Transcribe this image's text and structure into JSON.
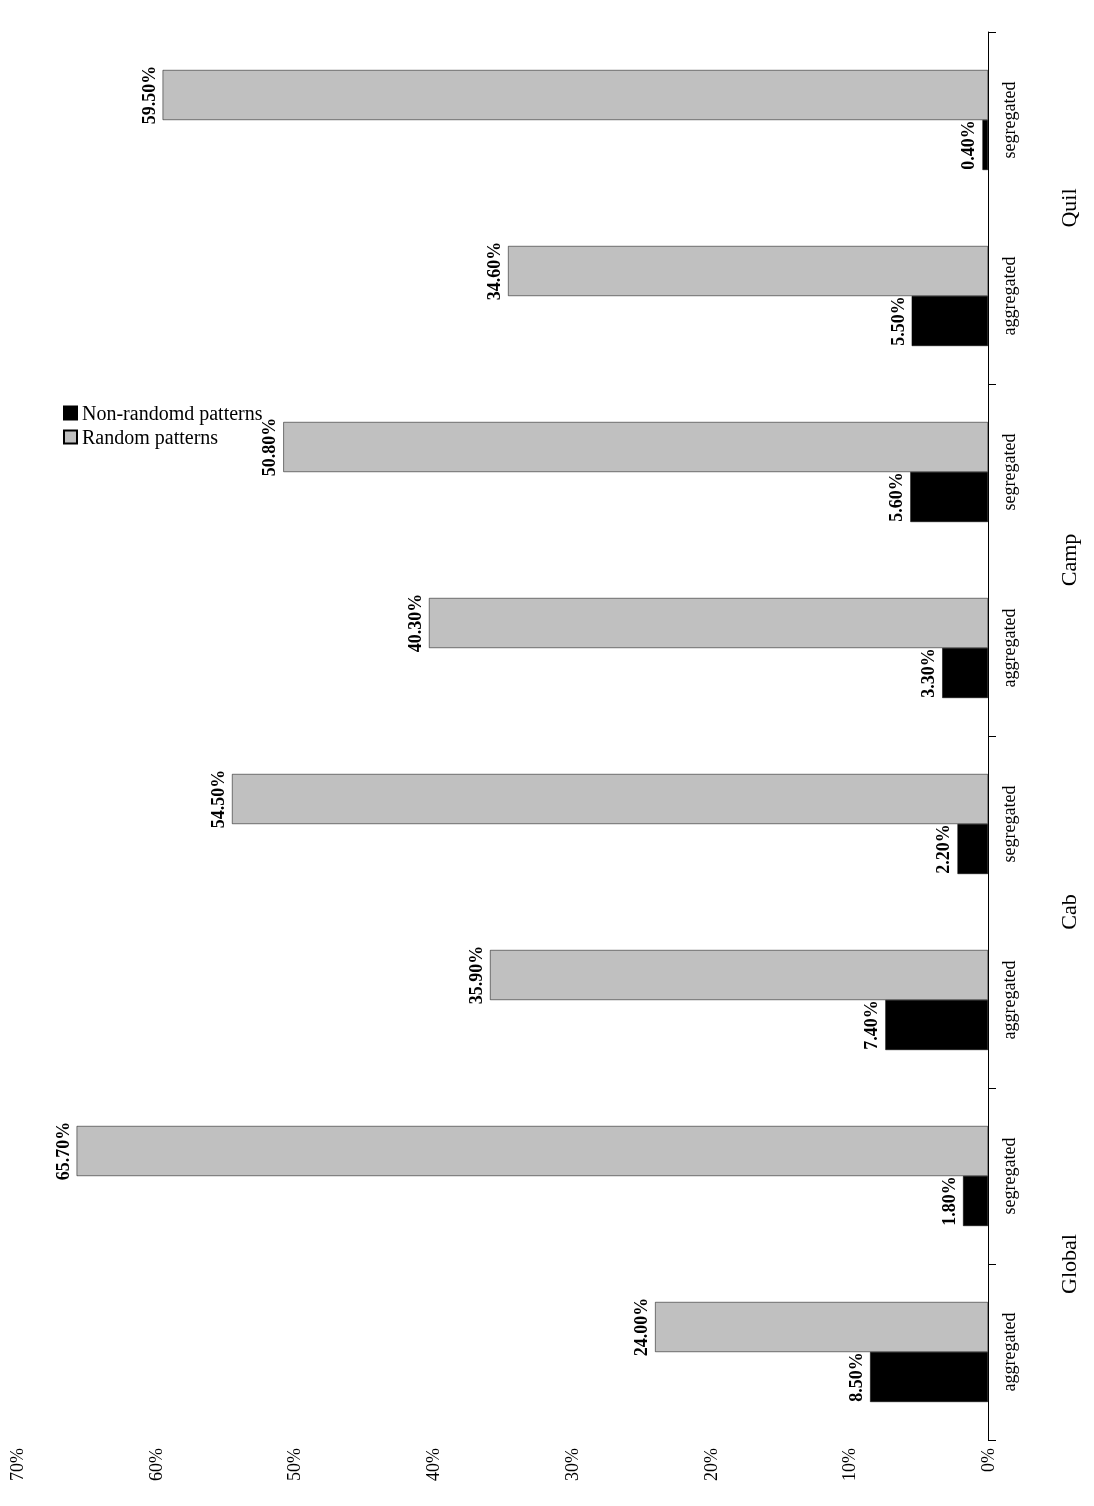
{
  "chart_data": {
    "type": "bar",
    "orientation": "horizontal",
    "categories": [
      "segregated",
      "aggregated",
      "segregated",
      "aggregated",
      "segregated",
      "aggregated",
      "segregated",
      "aggregated"
    ],
    "annotations": [
      "Quil",
      "Camp",
      "Cab",
      "Global"
    ],
    "series": [
      {
        "name": "Non-randomd patterns",
        "color": "#000000",
        "values": [
          0.4,
          5.5,
          5.6,
          3.3,
          2.2,
          7.4,
          1.8,
          8.5
        ],
        "value_labels": [
          "0.40%",
          "5.50%",
          "5.60%",
          "3.30%",
          "2.20%",
          "7.40%",
          "1.80%",
          "8.50%"
        ]
      },
      {
        "name": "Random patterns",
        "color": "#c0c0c0",
        "values": [
          59.5,
          34.6,
          50.8,
          40.3,
          54.5,
          35.9,
          65.7,
          24
        ],
        "value_labels": [
          "59.50%",
          "34.60%",
          "50.80%",
          "40.30%",
          "54.50%",
          "35.90%",
          "65.70%",
          "24.00%"
        ]
      }
    ],
    "xlim": [
      70,
      0
    ],
    "xticks": [
      {
        "value": 0,
        "label": "0%"
      },
      {
        "value": 10,
        "label": "10%"
      },
      {
        "value": 20,
        "label": "20%"
      },
      {
        "value": 30,
        "label": "30%"
      },
      {
        "value": 40,
        "label": "40%"
      },
      {
        "value": 50,
        "label": "50%"
      },
      {
        "value": 60,
        "label": "60%"
      },
      {
        "value": 70,
        "label": "70%"
      }
    ],
    "grid": false,
    "legend": "left"
  }
}
